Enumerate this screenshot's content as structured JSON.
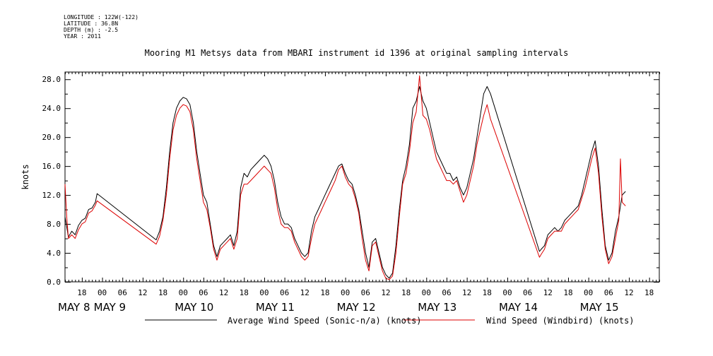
{
  "header": {
    "longitude": "LONGITUDE : 122W(-122)",
    "latitude": "LATITUDE : 36.8N",
    "depth": "DEPTH (m) : -2.5",
    "year": "YEAR : 2011"
  },
  "chart_data": {
    "type": "line",
    "title": "Mooring M1 Metsys data from MBARI instrument id 1396 at original sampling intervals",
    "ylabel": "knots",
    "xlabel": "",
    "ylim": [
      0,
      29
    ],
    "yticks": [
      "0.0",
      "4.0",
      "8.0",
      "12.0",
      "16.0",
      "20.0",
      "24.0",
      "28.0"
    ],
    "xlim_hours": [
      13,
      189
    ],
    "hour_ticks": [
      {
        "h": 18,
        "label": "18"
      },
      {
        "h": 24,
        "label": "00"
      },
      {
        "h": 30,
        "label": "06"
      },
      {
        "h": 36,
        "label": "12"
      },
      {
        "h": 42,
        "label": "18"
      },
      {
        "h": 48,
        "label": "00"
      },
      {
        "h": 54,
        "label": "06"
      },
      {
        "h": 60,
        "label": "12"
      },
      {
        "h": 66,
        "label": "18"
      },
      {
        "h": 72,
        "label": "00"
      },
      {
        "h": 78,
        "label": "06"
      },
      {
        "h": 84,
        "label": "12"
      },
      {
        "h": 90,
        "label": "18"
      },
      {
        "h": 96,
        "label": "00"
      },
      {
        "h": 102,
        "label": "06"
      },
      {
        "h": 108,
        "label": "12"
      },
      {
        "h": 114,
        "label": "18"
      },
      {
        "h": 120,
        "label": "00"
      },
      {
        "h": 126,
        "label": "06"
      },
      {
        "h": 132,
        "label": "12"
      },
      {
        "h": 138,
        "label": "18"
      },
      {
        "h": 144,
        "label": "00"
      },
      {
        "h": 150,
        "label": "06"
      },
      {
        "h": 156,
        "label": "12"
      },
      {
        "h": 162,
        "label": "18"
      },
      {
        "h": 168,
        "label": "00"
      },
      {
        "h": 174,
        "label": "06"
      },
      {
        "h": 180,
        "label": "12"
      },
      {
        "h": 186,
        "label": "18"
      }
    ],
    "days": [
      {
        "h": 0,
        "label": "MAY  8"
      },
      {
        "h": 24,
        "label": "MAY  9"
      },
      {
        "h": 48,
        "label": "MAY 10"
      },
      {
        "h": 72,
        "label": "MAY 11"
      },
      {
        "h": 96,
        "label": "MAY 12"
      },
      {
        "h": 120,
        "label": "MAY 13"
      },
      {
        "h": 144,
        "label": "MAY 14"
      },
      {
        "h": 168,
        "label": "MAY 15"
      }
    ],
    "series": [
      {
        "name": "Average Wind Speed (Sonic-n/a) (knots)",
        "color": "#000000",
        "points": [
          [
            13,
            9
          ],
          [
            14,
            6.2
          ],
          [
            15,
            7
          ],
          [
            16,
            6.5
          ],
          [
            17,
            7.8
          ],
          [
            18,
            8.5
          ],
          [
            19,
            8.8
          ],
          [
            20,
            10
          ],
          [
            21,
            10.2
          ],
          [
            22,
            11
          ],
          [
            22.5,
            12.2
          ],
          [
            40,
            5.8
          ],
          [
            41,
            7
          ],
          [
            42,
            9
          ],
          [
            43,
            13
          ],
          [
            44,
            18
          ],
          [
            45,
            22
          ],
          [
            46,
            24
          ],
          [
            47,
            25
          ],
          [
            48,
            25.5
          ],
          [
            49,
            25.3
          ],
          [
            50,
            24.5
          ],
          [
            51,
            22
          ],
          [
            52,
            18
          ],
          [
            53,
            15
          ],
          [
            54,
            12
          ],
          [
            55,
            11
          ],
          [
            56,
            8
          ],
          [
            57,
            5
          ],
          [
            58,
            3.5
          ],
          [
            59,
            5
          ],
          [
            60,
            5.5
          ],
          [
            61,
            6
          ],
          [
            62,
            6.5
          ],
          [
            63,
            5
          ],
          [
            64,
            7
          ],
          [
            65,
            13
          ],
          [
            66,
            15
          ],
          [
            67,
            14.5
          ],
          [
            68,
            15.5
          ],
          [
            69,
            16
          ],
          [
            70,
            16.5
          ],
          [
            71,
            17
          ],
          [
            72,
            17.5
          ],
          [
            73,
            17
          ],
          [
            74,
            16
          ],
          [
            75,
            14
          ],
          [
            76,
            11
          ],
          [
            77,
            9
          ],
          [
            78,
            8
          ],
          [
            79,
            8
          ],
          [
            80,
            7.5
          ],
          [
            81,
            6
          ],
          [
            82,
            5
          ],
          [
            83,
            4
          ],
          [
            84,
            3.5
          ],
          [
            85,
            4
          ],
          [
            86,
            7
          ],
          [
            87,
            9
          ],
          [
            88,
            10
          ],
          [
            89,
            11
          ],
          [
            90,
            12
          ],
          [
            91,
            13
          ],
          [
            92,
            14
          ],
          [
            93,
            15
          ],
          [
            94,
            16
          ],
          [
            95,
            16.3
          ],
          [
            96,
            15
          ],
          [
            97,
            14
          ],
          [
            98,
            13.5
          ],
          [
            99,
            12
          ],
          [
            100,
            10
          ],
          [
            101,
            7
          ],
          [
            102,
            4
          ],
          [
            103,
            2
          ],
          [
            104,
            5.5
          ],
          [
            105,
            6
          ],
          [
            106,
            4
          ],
          [
            107,
            2
          ],
          [
            108,
            1
          ],
          [
            109,
            0.5
          ],
          [
            110,
            1.2
          ],
          [
            111,
            5
          ],
          [
            112,
            10
          ],
          [
            113,
            14
          ],
          [
            114,
            16
          ],
          [
            115,
            19
          ],
          [
            116,
            24
          ],
          [
            117,
            25
          ],
          [
            118,
            27
          ],
          [
            119,
            25
          ],
          [
            120,
            24
          ],
          [
            121,
            22
          ],
          [
            122,
            20
          ],
          [
            123,
            18
          ],
          [
            124,
            17
          ],
          [
            125,
            16
          ],
          [
            126,
            15
          ],
          [
            127,
            15
          ],
          [
            128,
            14
          ],
          [
            129,
            14.5
          ],
          [
            130,
            13
          ],
          [
            131,
            12
          ],
          [
            132,
            13
          ],
          [
            133,
            15
          ],
          [
            134,
            17
          ],
          [
            135,
            20
          ],
          [
            136,
            23
          ],
          [
            137,
            26
          ],
          [
            138,
            27
          ],
          [
            139,
            26
          ],
          [
            153.5,
            4.2
          ],
          [
            154,
            4.5
          ],
          [
            155,
            5
          ],
          [
            156,
            6.5
          ],
          [
            157,
            7
          ],
          [
            158,
            7.5
          ],
          [
            159,
            7
          ],
          [
            160,
            7.5
          ],
          [
            161,
            8.5
          ],
          [
            162,
            9
          ],
          [
            163,
            9.5
          ],
          [
            164,
            10
          ],
          [
            165,
            10.5
          ],
          [
            166,
            12
          ],
          [
            167,
            14
          ],
          [
            168,
            16
          ],
          [
            169,
            18
          ],
          [
            170,
            19.5
          ],
          [
            171,
            16
          ],
          [
            172,
            10
          ],
          [
            173,
            5
          ],
          [
            174,
            3
          ],
          [
            175,
            4
          ],
          [
            176,
            7
          ],
          [
            177,
            9
          ],
          [
            178,
            12
          ],
          [
            179,
            12.5
          ]
        ]
      },
      {
        "name": "Wind Speed (Windbird) (knots)",
        "color": "#dd0000",
        "points": [
          [
            13,
            13.5
          ],
          [
            13.5,
            9
          ],
          [
            14,
            6
          ],
          [
            15,
            6.5
          ],
          [
            16,
            6
          ],
          [
            17,
            7.2
          ],
          [
            18,
            8
          ],
          [
            19,
            8.3
          ],
          [
            20,
            9.5
          ],
          [
            21,
            9.8
          ],
          [
            22,
            10.6
          ],
          [
            22.5,
            11.2
          ],
          [
            40,
            5.2
          ],
          [
            41,
            6.3
          ],
          [
            42,
            8.5
          ],
          [
            43,
            12
          ],
          [
            44,
            17
          ],
          [
            45,
            21
          ],
          [
            46,
            23
          ],
          [
            47,
            24
          ],
          [
            48,
            24.5
          ],
          [
            49,
            24.3
          ],
          [
            50,
            23.5
          ],
          [
            51,
            21
          ],
          [
            52,
            17
          ],
          [
            53,
            14
          ],
          [
            54,
            11
          ],
          [
            55,
            10
          ],
          [
            56,
            7.5
          ],
          [
            57,
            4.5
          ],
          [
            58,
            3
          ],
          [
            59,
            4.5
          ],
          [
            60,
            5
          ],
          [
            61,
            5.5
          ],
          [
            62,
            6
          ],
          [
            63,
            4.5
          ],
          [
            64,
            6
          ],
          [
            65,
            12
          ],
          [
            66,
            13.5
          ],
          [
            67,
            13.5
          ],
          [
            68,
            14
          ],
          [
            69,
            14.5
          ],
          [
            70,
            15
          ],
          [
            71,
            15.5
          ],
          [
            72,
            16
          ],
          [
            73,
            15.5
          ],
          [
            74,
            15
          ],
          [
            75,
            13
          ],
          [
            76,
            10
          ],
          [
            77,
            8
          ],
          [
            78,
            7.5
          ],
          [
            79,
            7.5
          ],
          [
            80,
            7
          ],
          [
            81,
            5.5
          ],
          [
            82,
            4.5
          ],
          [
            83,
            3.5
          ],
          [
            84,
            3
          ],
          [
            85,
            3.5
          ],
          [
            86,
            6
          ],
          [
            87,
            8
          ],
          [
            88,
            9
          ],
          [
            89,
            10
          ],
          [
            90,
            11
          ],
          [
            91,
            12
          ],
          [
            92,
            13
          ],
          [
            93,
            14
          ],
          [
            94,
            15.5
          ],
          [
            95,
            16
          ],
          [
            96,
            14.5
          ],
          [
            97,
            13.5
          ],
          [
            98,
            13
          ],
          [
            99,
            11.5
          ],
          [
            100,
            9.5
          ],
          [
            101,
            6
          ],
          [
            102,
            3
          ],
          [
            103,
            1.5
          ],
          [
            104,
            5
          ],
          [
            105,
            5.5
          ],
          [
            106,
            3.5
          ],
          [
            107,
            1.5
          ],
          [
            108,
            0.5
          ],
          [
            109,
            0.3
          ],
          [
            110,
            0.8
          ],
          [
            111,
            4
          ],
          [
            112,
            9
          ],
          [
            113,
            13.5
          ],
          [
            114,
            15
          ],
          [
            115,
            18
          ],
          [
            116,
            22
          ],
          [
            117,
            23.5
          ],
          [
            118,
            28.5
          ],
          [
            119,
            23
          ],
          [
            120,
            22.5
          ],
          [
            121,
            21
          ],
          [
            122,
            19
          ],
          [
            123,
            17
          ],
          [
            124,
            16
          ],
          [
            125,
            15
          ],
          [
            126,
            14
          ],
          [
            127,
            14
          ],
          [
            128,
            13.5
          ],
          [
            129,
            14
          ],
          [
            130,
            12.5
          ],
          [
            131,
            11
          ],
          [
            132,
            12
          ],
          [
            133,
            14
          ],
          [
            134,
            16
          ],
          [
            135,
            19
          ],
          [
            136,
            21
          ],
          [
            137,
            23
          ],
          [
            138,
            24.5
          ],
          [
            139,
            22.5
          ],
          [
            153.5,
            3.4
          ],
          [
            154,
            3.8
          ],
          [
            155,
            4.5
          ],
          [
            156,
            6
          ],
          [
            157,
            6.5
          ],
          [
            158,
            7
          ],
          [
            158.5,
            7
          ],
          [
            160,
            7
          ],
          [
            161,
            8
          ],
          [
            162,
            8.5
          ],
          [
            163,
            9
          ],
          [
            164,
            9.5
          ],
          [
            165,
            10
          ],
          [
            166,
            11.5
          ],
          [
            167,
            13
          ],
          [
            168,
            15
          ],
          [
            169,
            17
          ],
          [
            170,
            18.5
          ],
          [
            171,
            15
          ],
          [
            172,
            9
          ],
          [
            173,
            4.5
          ],
          [
            174,
            2.5
          ],
          [
            175,
            3.5
          ],
          [
            176,
            6
          ],
          [
            177,
            8.5
          ],
          [
            177.5,
            17
          ],
          [
            178,
            11
          ],
          [
            179,
            10.5
          ]
        ]
      }
    ]
  }
}
